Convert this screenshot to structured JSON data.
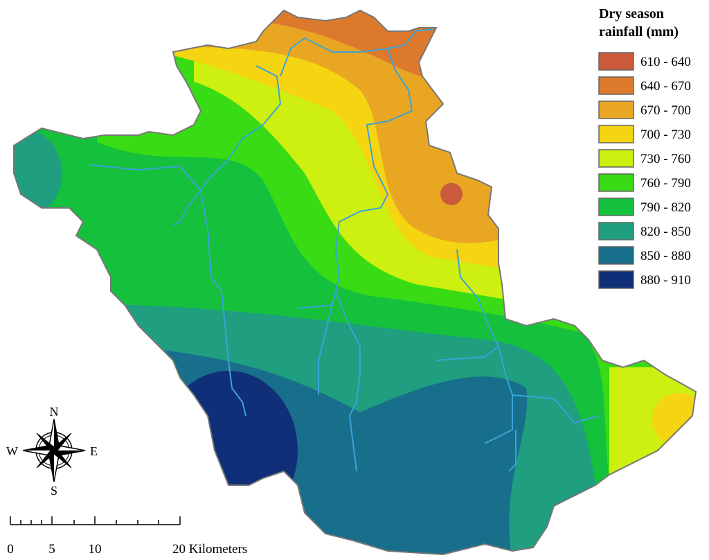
{
  "legend": {
    "title": [
      "Dry season",
      "rainfall (mm)"
    ],
    "items": [
      {
        "label": "610 - 640",
        "color": "#cb5a3c"
      },
      {
        "label": "640 - 670",
        "color": "#dc792c"
      },
      {
        "label": "670 - 700",
        "color": "#e9a622"
      },
      {
        "label": "700 - 730",
        "color": "#f5d412"
      },
      {
        "label": "730 - 760",
        "color": "#cdf010"
      },
      {
        "label": "760 - 790",
        "color": "#38db14"
      },
      {
        "label": "790 - 820",
        "color": "#15c03d"
      },
      {
        "label": "820 - 850",
        "color": "#1f9e80"
      },
      {
        "label": "850 - 880",
        "color": "#186f8c"
      },
      {
        "label": "880 - 910",
        "color": "#0f2f78"
      }
    ]
  },
  "compass": {
    "north": "N",
    "south": "S",
    "east": "E",
    "west": "W"
  },
  "scale_bar": {
    "labels": [
      "0",
      "5",
      "10",
      "20 Kilometers"
    ]
  }
}
